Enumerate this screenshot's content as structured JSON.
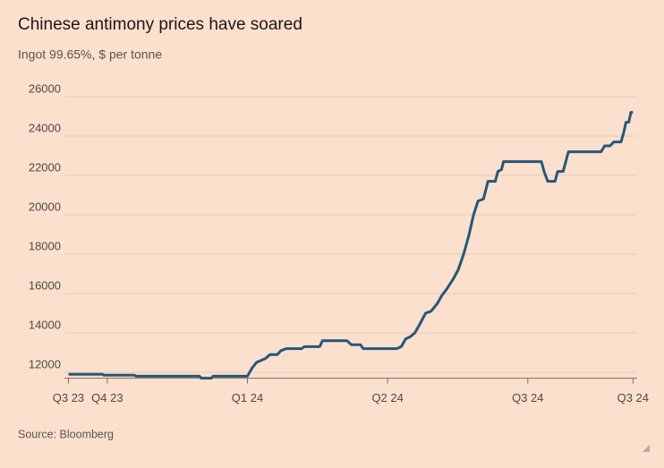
{
  "chart_data": {
    "type": "line",
    "title": "Chinese antimony prices have soared",
    "subtitle": "Ingot 99.65%, $ per tonne",
    "source": "Source: Bloomberg",
    "color": "#24587a",
    "background": "#fbe0cd",
    "grid": true,
    "x": [
      -0.277,
      -0.032,
      -0.026,
      0.194,
      0.206,
      0.658,
      0.671,
      0.742,
      0.755,
      1.0,
      1.032,
      1.065,
      1.097,
      1.129,
      1.161,
      1.213,
      1.239,
      1.277,
      1.387,
      1.406,
      1.516,
      1.535,
      1.71,
      1.742,
      1.806,
      1.826,
      2.065,
      2.097,
      2.129,
      2.161,
      2.194,
      2.226,
      2.271,
      2.31,
      2.355,
      2.387,
      2.419,
      2.465,
      2.503,
      2.542,
      2.581,
      2.613,
      2.645,
      2.684,
      2.716,
      2.768,
      2.787,
      2.813,
      2.826,
      3.097,
      3.116,
      3.142,
      3.194,
      3.213,
      3.252,
      3.29,
      3.523,
      3.548,
      3.587,
      3.613,
      3.665,
      3.685,
      3.7,
      3.72,
      3.735,
      3.75
    ],
    "values": [
      11900,
      11900,
      11850,
      11850,
      11800,
      11800,
      11700,
      11700,
      11800,
      11800,
      12200,
      12500,
      12600,
      12700,
      12900,
      12900,
      13100,
      13200,
      13200,
      13300,
      13300,
      13600,
      13600,
      13400,
      13400,
      13200,
      13200,
      13300,
      13700,
      13800,
      14000,
      14400,
      15000,
      15100,
      15500,
      15900,
      16200,
      16700,
      17200,
      18000,
      19000,
      20000,
      20700,
      20800,
      21700,
      21700,
      22200,
      22300,
      22700,
      22700,
      22200,
      21700,
      21700,
      22200,
      22200,
      23200,
      23200,
      23500,
      23500,
      23700,
      23700,
      24200,
      24700,
      24700,
      25200,
      25200
    ],
    "xlim": [
      -0.28,
      3.78
    ],
    "xticks": [
      {
        "value": -0.277,
        "label": "Q3 23"
      },
      {
        "value": 0,
        "label": "Q4 23"
      },
      {
        "value": 1,
        "label": "Q1 24"
      },
      {
        "value": 2,
        "label": "Q2 24"
      },
      {
        "value": 3,
        "label": "Q3 24"
      },
      {
        "value": 3.75,
        "label": "Q3 24"
      }
    ],
    "ylim": [
      11700,
      26000
    ],
    "yticks": [
      12000,
      14000,
      16000,
      18000,
      20000,
      22000,
      24000,
      26000
    ]
  }
}
